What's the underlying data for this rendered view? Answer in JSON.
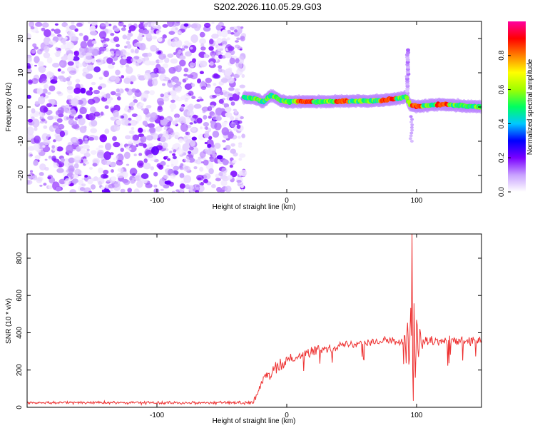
{
  "figure": {
    "title": "S202.2026.110.05.29.G03"
  },
  "chart_data": [
    {
      "type": "heatmap",
      "title": "S202.2026.110.05.29.G03",
      "xlabel": "Height of straight line (km)",
      "ylabel": "Frequency (Hz)",
      "xlim": [
        -200,
        150
      ],
      "ylim": [
        -25,
        25
      ],
      "x_ticks": [
        -100,
        0,
        100
      ],
      "y_ticks": [
        -20,
        -10,
        0,
        10,
        20
      ],
      "colorbar": {
        "label": "Normalized spectral amplitude",
        "range": [
          0.0,
          1.0
        ],
        "ticks": [
          "0.0",
          "0.2",
          "0.4",
          "0.6",
          "0.8"
        ],
        "colors": [
          "#ffffff",
          "#c8a0ff",
          "#7a00ff",
          "#0000ff",
          "#00c8ff",
          "#00ff60",
          "#a0ff00",
          "#ffff00",
          "#ff8000",
          "#ff0000",
          "#ff00a0"
        ]
      },
      "noise_region_x": [
        -200,
        -35
      ],
      "ridge": [
        {
          "x": -33,
          "f": 2.8
        },
        {
          "x": -25,
          "f": 2.5
        },
        {
          "x": -18,
          "f": 1.5
        },
        {
          "x": -12,
          "f": 3.5
        },
        {
          "x": -5,
          "f": 2.0
        },
        {
          "x": 0,
          "f": 1.5
        },
        {
          "x": 10,
          "f": 1.6
        },
        {
          "x": 30,
          "f": 1.6
        },
        {
          "x": 50,
          "f": 1.7
        },
        {
          "x": 70,
          "f": 1.8
        },
        {
          "x": 85,
          "f": 2.4
        },
        {
          "x": 92,
          "f": 3.0
        },
        {
          "x": 95,
          "f": 0.5
        },
        {
          "x": 100,
          "f": 0.2
        },
        {
          "x": 120,
          "f": 0.8
        },
        {
          "x": 150,
          "f": 0.0
        }
      ]
    },
    {
      "type": "line",
      "xlabel": "Height of straight line (km)",
      "ylabel": "SNR (10 * v/v)",
      "xlim": [
        -200,
        150
      ],
      "ylim": [
        0,
        930
      ],
      "x_ticks": [
        -100,
        0,
        100
      ],
      "y_ticks": [
        0,
        200,
        400,
        600,
        800
      ],
      "color": "#ee3333",
      "profile": [
        {
          "x": -200,
          "y": 25
        },
        {
          "x": -25,
          "y": 25
        },
        {
          "x": -20,
          "y": 120
        },
        {
          "x": -15,
          "y": 170
        },
        {
          "x": -5,
          "y": 220
        },
        {
          "x": 0,
          "y": 255
        },
        {
          "x": 20,
          "y": 300
        },
        {
          "x": 40,
          "y": 330
        },
        {
          "x": 60,
          "y": 350
        },
        {
          "x": 80,
          "y": 355
        },
        {
          "x": 100,
          "y": 350
        },
        {
          "x": 150,
          "y": 355
        }
      ],
      "features": [
        {
          "x": 96.5,
          "y": 930,
          "label": "peak"
        },
        {
          "x": 97,
          "y": 35,
          "label": "dip"
        }
      ]
    }
  ]
}
